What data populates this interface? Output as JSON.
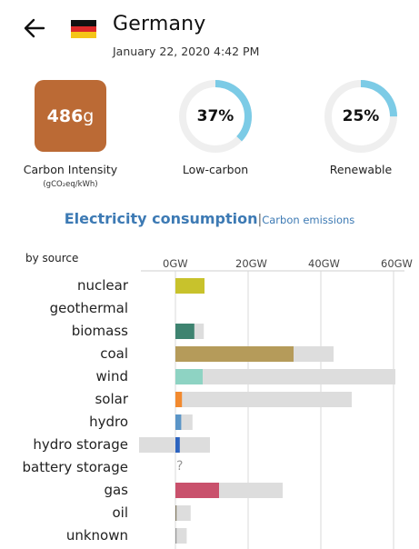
{
  "header": {
    "back_icon": "arrow-left-icon",
    "flag_icon": "germany-flag-icon",
    "country": "Germany",
    "datetime": "January 22, 2020 4:42 PM"
  },
  "stats": {
    "carbon_intensity": {
      "value": "486",
      "unit": "g",
      "label": "Carbon Intensity",
      "sublabel": "(gCO₂eq/kWh)",
      "color": "#bb6a35"
    },
    "low_carbon": {
      "value_text": "37%",
      "fraction": 0.37,
      "label": "Low-carbon"
    },
    "renewable": {
      "value_text": "25%",
      "fraction": 0.25,
      "label": "Renewable"
    },
    "ring_color": "#7ccbe6",
    "ring_track": "#efefef"
  },
  "tabs": {
    "active": "Electricity consumption",
    "separator": "|",
    "other": "Carbon emissions"
  },
  "chart_data": {
    "type": "bar",
    "title": "",
    "ylabel": "by source",
    "unit": "GW",
    "xlim": [
      -1,
      60
    ],
    "ticks": [
      {
        "value": 0,
        "label": "0GW"
      },
      {
        "value": 20,
        "label": "20GW"
      },
      {
        "value": 40,
        "label": "40GW"
      },
      {
        "value": 60,
        "label": "60GW"
      }
    ],
    "categories": [
      "nuclear",
      "geothermal",
      "biomass",
      "coal",
      "wind",
      "solar",
      "hydro",
      "hydro storage",
      "battery storage",
      "gas",
      "oil",
      "unknown"
    ],
    "series": [
      {
        "values": [
          8,
          null,
          5.2,
          32.5,
          7.5,
          1.8,
          1.6,
          1.2,
          null,
          12,
          0.3,
          0.3
        ]
      },
      {
        "values": [
          8,
          null,
          7.8,
          43.5,
          60.5,
          48.5,
          4.7,
          9.5,
          null,
          29.5,
          4.2,
          3.1
        ]
      }
    ],
    "capacity_min": [
      0,
      null,
      0,
      0,
      0,
      0,
      0,
      -10,
      null,
      0,
      0,
      0
    ],
    "colors": [
      "#c8c22c",
      "#ffffff",
      "#3e8370",
      "#b59b5a",
      "#8ed3c3",
      "#f28a2f",
      "#5b95c7",
      "#2c63bf",
      "#b6b6b6",
      "#c9516c",
      "#867d66",
      "#999999"
    ],
    "unknown_marker": "?",
    "capacity_color": "#dddddd",
    "grid": true
  }
}
